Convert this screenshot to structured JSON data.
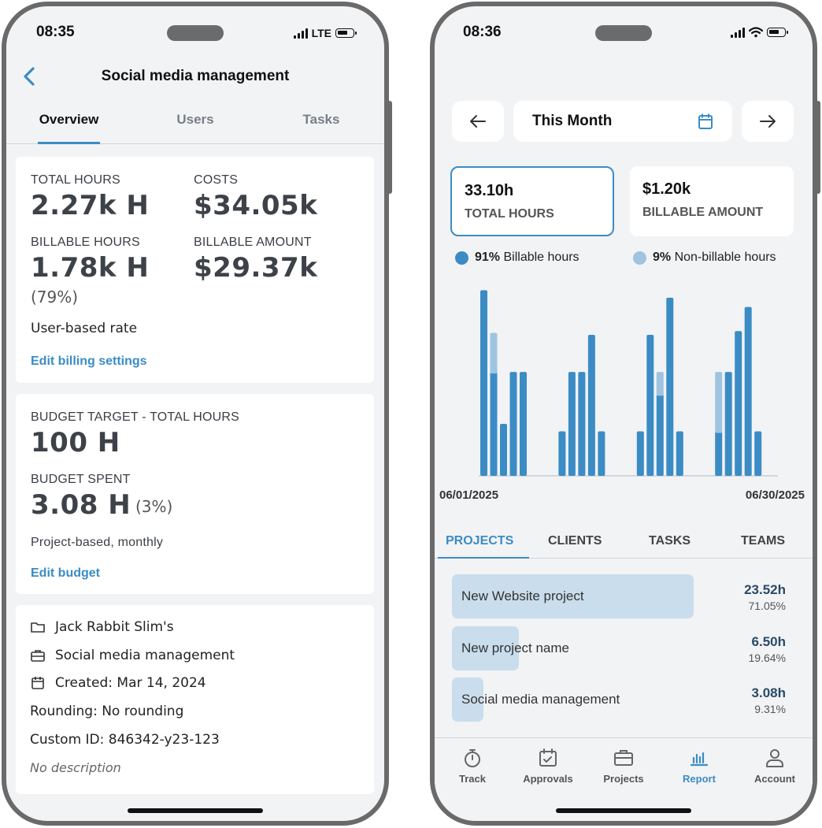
{
  "left_phone": {
    "status": {
      "time": "08:35",
      "network": "LTE"
    },
    "header": {
      "title": "Social media management"
    },
    "tabs": [
      {
        "label": "Overview",
        "active": true
      },
      {
        "label": "Users",
        "active": false
      },
      {
        "label": "Tasks",
        "active": false
      }
    ],
    "stats": {
      "total_hours_label": "TOTAL HOURS",
      "total_hours_value": "2.27k H",
      "costs_label": "COSTS",
      "costs_value": "$34.05k",
      "billable_hours_label": "BILLABLE HOURS",
      "billable_hours_value": "1.78k H",
      "billable_hours_pct": "(79%)",
      "billable_amount_label": "BILLABLE AMOUNT",
      "billable_amount_value": "$29.37k",
      "rate_text": "User-based rate",
      "edit_billing_link": "Edit billing settings"
    },
    "budget": {
      "target_label": "BUDGET TARGET - TOTAL HOURS",
      "target_value": "100 H",
      "spent_label": "BUDGET SPENT",
      "spent_value": "3.08 H",
      "spent_pct": "(3%)",
      "type_text": "Project-based, monthly",
      "edit_budget_link": "Edit budget"
    },
    "info": {
      "client": "Jack Rabbit Slim's",
      "project": "Social media management",
      "created": "Created: Mar 14, 2024",
      "rounding": "Rounding: No rounding",
      "custom_id": "Custom ID: 846342-y23-123",
      "description": "No description"
    }
  },
  "right_phone": {
    "status": {
      "time": "08:36"
    },
    "date_range": {
      "label": "This Month"
    },
    "kpis": {
      "total_hours_value": "33.10h",
      "total_hours_label": "TOTAL HOURS",
      "billable_amount_value": "$1.20k",
      "billable_amount_label": "BILLABLE AMOUNT"
    },
    "legend": {
      "billable_pct": "91%",
      "billable_label": "Billable hours",
      "nonbillable_pct": "9%",
      "nonbillable_label": "Non-billable hours"
    },
    "colors": {
      "billable": "#3b8cc4",
      "nonbillable": "#9ec4e0",
      "accent": "#3b8cc4"
    },
    "chart_data": {
      "type": "bar",
      "stacked": true,
      "x_start_label": "06/01/2025",
      "x_end_label": "06/30/2025",
      "groups": [
        {
          "billable": [
            10,
            5.6,
            2.8,
            5.6,
            5.6
          ],
          "nonbillable": [
            0,
            2.1,
            0,
            0,
            0
          ]
        },
        {
          "billable": [
            2.4,
            5.6,
            5.6,
            7.6,
            2.4
          ],
          "nonbillable": [
            0,
            0,
            0,
            0,
            0
          ]
        },
        {
          "billable": [
            2.4,
            7.6,
            4.4,
            9.6,
            2.4
          ],
          "nonbillable": [
            0,
            0,
            1.2,
            0,
            0
          ]
        },
        {
          "billable": [
            2.4,
            5.6,
            7.8,
            9.1,
            2.4
          ],
          "nonbillable": [
            3.2,
            0,
            0,
            0,
            0
          ]
        }
      ],
      "ylim": [
        0,
        10.4
      ]
    },
    "tabs": [
      {
        "label": "PROJECTS",
        "active": true
      },
      {
        "label": "CLIENTS",
        "active": false
      },
      {
        "label": "TASKS",
        "active": false
      },
      {
        "label": "TEAMS",
        "active": false
      }
    ],
    "projects": [
      {
        "name": "New Website project",
        "hours": "23.52h",
        "pct": "71.05%",
        "share": 0.7105
      },
      {
        "name": "New project name",
        "hours": "6.50h",
        "pct": "19.64%",
        "share": 0.1964
      },
      {
        "name": "Social media management",
        "hours": "3.08h",
        "pct": "9.31%",
        "share": 0.0931
      }
    ],
    "nav": [
      {
        "label": "Track",
        "icon": "stopwatch-icon",
        "active": false
      },
      {
        "label": "Approvals",
        "icon": "calendar-check-icon",
        "active": false
      },
      {
        "label": "Projects",
        "icon": "briefcase-icon",
        "active": false
      },
      {
        "label": "Report",
        "icon": "bar-chart-icon",
        "active": true
      },
      {
        "label": "Account",
        "icon": "user-icon",
        "active": false
      }
    ]
  }
}
